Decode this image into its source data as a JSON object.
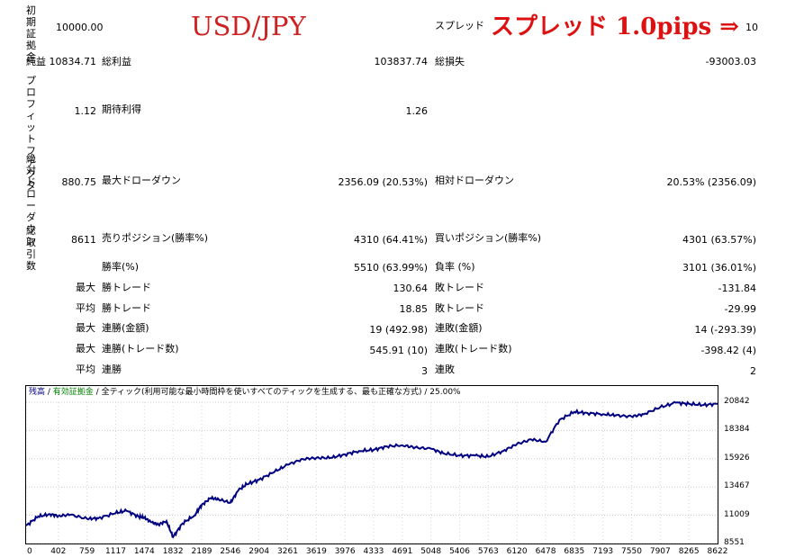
{
  "header": {
    "initial_deposit_label": "初期証拠金",
    "initial_deposit": "10000.00",
    "pair_title": "USD/JPY",
    "spread_label": "スプレッド",
    "spread_annotation": "スプレッド 1.0pips ⇒",
    "spread_value": "10"
  },
  "stats": {
    "net_profit_label": "純益",
    "net_profit": "10834.71",
    "gross_profit_label": "総利益",
    "gross_profit": "103837.74",
    "gross_loss_label": "総損失",
    "gross_loss": "-93003.03",
    "profit_factor_label": "プロフィットファクタ",
    "profit_factor": "1.12",
    "expected_payoff_label": "期待利得",
    "expected_payoff": "1.26",
    "abs_drawdown_label": "絶対ドローダウン",
    "abs_drawdown": "880.75",
    "max_drawdown_label": "最大ドローダウン",
    "max_drawdown": "2356.09 (20.53%)",
    "rel_drawdown_label": "相対ドローダウン",
    "rel_drawdown": "20.53% (2356.09)",
    "total_trades_label": "総取引数",
    "total_trades": "8611",
    "short_label": "売りポジション(勝率%)",
    "short_value": "4310 (64.41%)",
    "long_label": "買いポジション(勝率%)",
    "long_value": "4301 (63.57%)",
    "win_rate_label": "勝率(%)",
    "win_rate": "5510 (63.99%)",
    "loss_rate_label": "負率 (%)",
    "loss_rate": "3101 (36.01%)",
    "largest_prefix": "最大",
    "largest_win_label": "勝トレード",
    "largest_win": "130.64",
    "largest_loss_label": "敗トレード",
    "largest_loss": "-131.84",
    "average_prefix": "平均",
    "avg_win_label": "勝トレード",
    "avg_win": "18.85",
    "avg_loss_label": "敗トレード",
    "avg_loss": "-29.99",
    "max_prefix_1": "最大",
    "max_consec_wins_money_label": "連勝(金額)",
    "max_consec_wins_money": "19 (492.98)",
    "max_consec_losses_money_label": "連敗(金額)",
    "max_consec_losses_money": "14 (-293.39)",
    "max_prefix_2": "最大",
    "max_consec_wins_trades_label": "連勝(トレード数)",
    "max_consec_wins_trades": "545.91 (10)",
    "max_consec_losses_trades_label": "連敗(トレード数)",
    "max_consec_losses_trades": "-398.42 (4)",
    "avg_prefix_2": "平均",
    "avg_consec_wins_label": "連勝",
    "avg_consec_wins": "3",
    "avg_consec_losses_label": "連敗",
    "avg_consec_losses": "2"
  },
  "chart_data": {
    "type": "line",
    "legend": [
      {
        "text": "残高",
        "color": "#000080"
      },
      {
        "text": " / ",
        "color": "#000000"
      },
      {
        "text": "有効証拠金",
        "color": "#008000"
      },
      {
        "text": " / ",
        "color": "#000000"
      },
      {
        "text": "全ティック(利用可能な最小時間枠を使いすべてのティックを生成する、最も正確な方式)",
        "color": "#000000"
      },
      {
        "text": " / 25.00%",
        "color": "#000000"
      }
    ],
    "line_color": "#000080",
    "y_ticks": [
      "20842",
      "18384",
      "15926",
      "13467",
      "11009",
      "8551"
    ],
    "y_range": [
      8551,
      20842
    ],
    "x_ticks": [
      "0",
      "402",
      "759",
      "1117",
      "1474",
      "1832",
      "2189",
      "2546",
      "2904",
      "3261",
      "3619",
      "3976",
      "4333",
      "4691",
      "5048",
      "5406",
      "5763",
      "6120",
      "6478",
      "6835",
      "7193",
      "7550",
      "7907",
      "8265",
      "8622"
    ],
    "x_range": [
      0,
      8622
    ],
    "grid": true,
    "series": [
      {
        "x": [
          0,
          150,
          300,
          402,
          550,
          759,
          900,
          1117,
          1250,
          1400,
          1474,
          1560,
          1650,
          1750,
          1832,
          1950,
          2100,
          2189,
          2300,
          2400,
          2546,
          2650,
          2750,
          2904,
          3100,
          3261,
          3450,
          3619,
          3800,
          3976,
          4150,
          4333,
          4500,
          4691,
          4850,
          5048,
          5200,
          5406,
          5600,
          5763,
          5950,
          6120,
          6300,
          6478,
          6650,
          6835,
          7000,
          7193,
          7350,
          7550,
          7700,
          7907,
          8100,
          8265,
          8450,
          8622
        ],
        "y": [
          10100,
          10900,
          11100,
          10950,
          11050,
          10700,
          10750,
          11200,
          11400,
          10900,
          10800,
          10400,
          10200,
          10500,
          9100,
          10300,
          11000,
          11900,
          12500,
          12400,
          12100,
          13200,
          13700,
          14100,
          14800,
          15400,
          15900,
          16000,
          16000,
          16300,
          16600,
          16700,
          17000,
          17100,
          16900,
          16800,
          16400,
          16200,
          16200,
          16100,
          16600,
          17200,
          17600,
          17400,
          19300,
          20000,
          19900,
          19800,
          19700,
          19600,
          19800,
          20400,
          20800,
          20700,
          20600,
          20700
        ]
      }
    ]
  }
}
